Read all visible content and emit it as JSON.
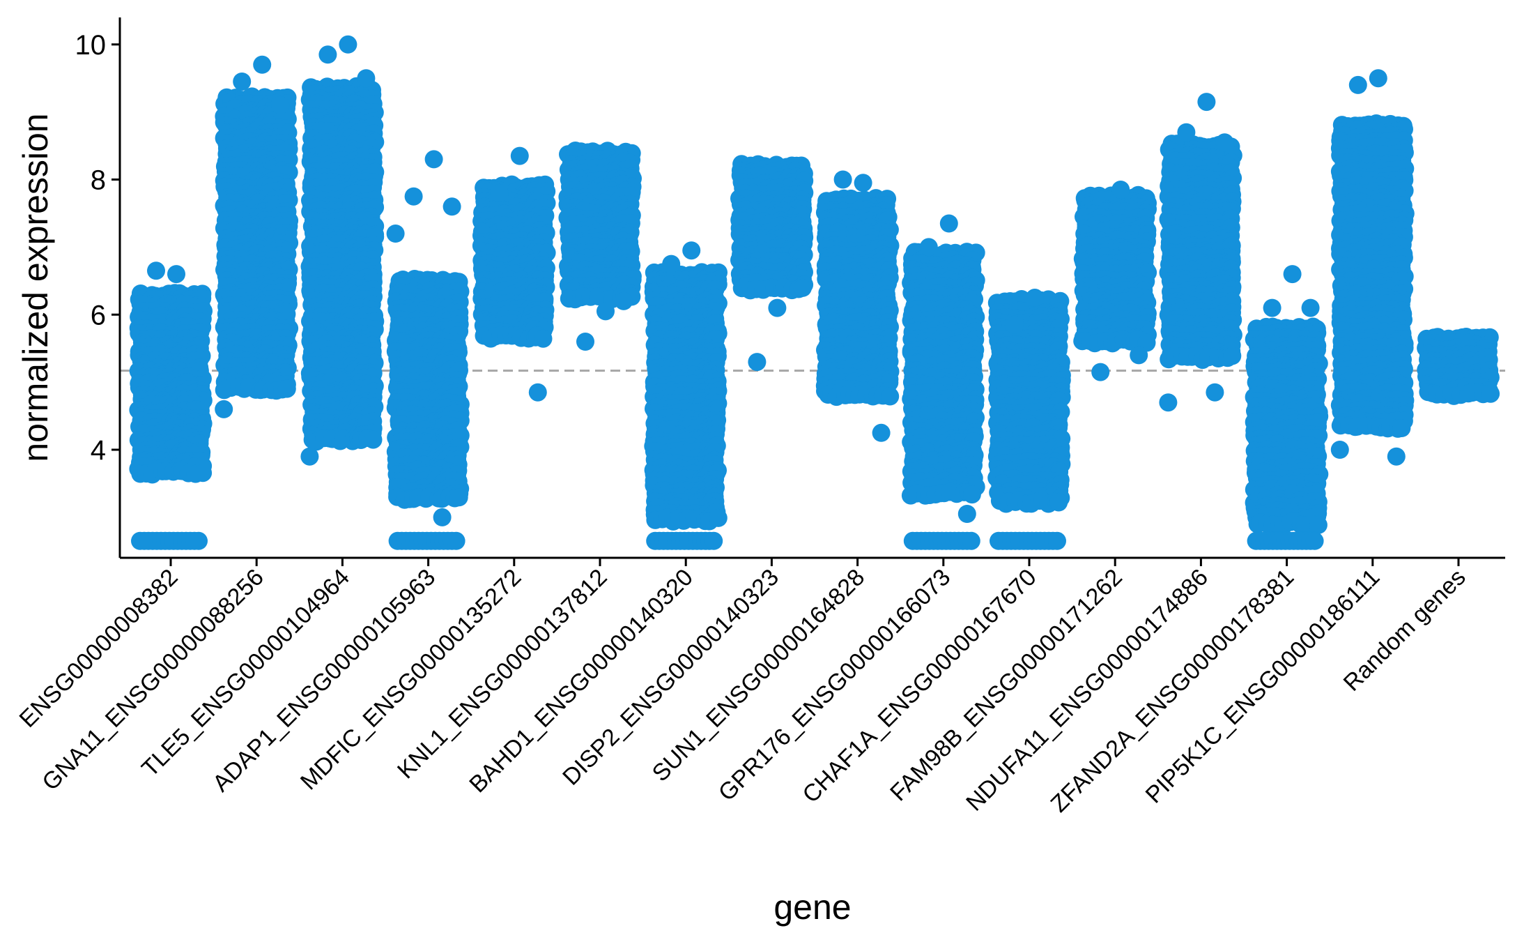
{
  "chart_data": {
    "type": "scatter",
    "subtype": "jitter strip plot",
    "xlabel": "gene",
    "ylabel": "normalized expression",
    "ylim": [
      2.4,
      10.4
    ],
    "yticks": [
      4,
      6,
      8,
      10
    ],
    "point_color": "#1591DB",
    "reference_line": {
      "y": 5.17,
      "style": "dashed",
      "color": "#a6a6a6"
    },
    "categories": [
      "ENSG00000008382",
      "GNA11_ENSG00000088256",
      "TLE5_ENSG00000104964",
      "ADAP1_ENSG00000105963",
      "MDFIC_ENSG00000135272",
      "KNL1_ENSG00000137812",
      "BAHD1_ENSG00000140320",
      "DISP2_ENSG00000140323",
      "SUN1_ENSG00000164828",
      "GPR176_ENSG00000166073",
      "CHAF1A_ENSG00000167670",
      "FAM98B_ENSG00000171262",
      "NDUFA11_ENSG00000174886",
      "ZFAND2A_ENSG00000178381",
      "PIP5K1C_ENSG00000186111",
      "Random genes"
    ],
    "x_tick_labels": [
      "ENSG00000008382",
      "GNA11_ENSG00000088256",
      "TLE5_ENSG00000104964",
      "ADAP1_ENSG00000105963",
      "MDFIC_ENSG00000135272",
      "KNL1_ENSG00000137812",
      "BAHD1_ENSG00000140320",
      "DISP2_ENSG00000140323",
      "SUN1_ENSG00000164828",
      "GPR176_ENSG00000166073",
      "CHAF1A_ENSG00000167670",
      "FAM98B_ENSG00000171262",
      "NDUFA11_ENSG00000174886",
      "ZFAND2A_ENSG00000178381",
      "PIP5K1C_ENSG00000186111",
      "Random genes"
    ],
    "distributions": [
      {
        "category": "ENSG00000008382",
        "min": 3.6,
        "max": 6.3,
        "floor": 2.65,
        "outliers": [
          6.6,
          6.65
        ]
      },
      {
        "category": "GNA11_ENSG00000088256",
        "min": 4.9,
        "max": 9.2,
        "outliers": [
          9.7,
          9.45,
          9.1,
          4.6
        ]
      },
      {
        "category": "TLE5_ENSG00000104964",
        "min": 4.1,
        "max": 9.35,
        "outliers": [
          10.0,
          9.85,
          9.5,
          3.9
        ]
      },
      {
        "category": "ADAP1_ENSG00000105963",
        "min": 3.2,
        "max": 6.5,
        "floor": 2.65,
        "outliers": [
          8.3,
          7.75,
          7.6,
          7.2,
          3.0
        ]
      },
      {
        "category": "MDFIC_ENSG00000135272",
        "min": 5.6,
        "max": 7.9,
        "outliers": [
          8.35,
          7.8,
          4.85
        ]
      },
      {
        "category": "KNL1_ENSG00000137812",
        "min": 6.2,
        "max": 8.4,
        "outliers": [
          6.05,
          5.6,
          6.2
        ]
      },
      {
        "category": "BAHD1_ENSG00000140320",
        "min": 2.9,
        "max": 6.6,
        "floor": 2.65,
        "outliers": [
          6.95,
          6.75
        ]
      },
      {
        "category": "DISP2_ENSG00000140323",
        "min": 6.35,
        "max": 8.2,
        "outliers": [
          6.1,
          5.3
        ]
      },
      {
        "category": "SUN1_ENSG00000164828",
        "min": 4.8,
        "max": 7.7,
        "outliers": [
          7.95,
          8.0,
          4.25
        ]
      },
      {
        "category": "GPR176_ENSG00000166073",
        "min": 3.3,
        "max": 6.9,
        "floor": 2.65,
        "outliers": [
          7.35,
          7.0,
          3.05
        ]
      },
      {
        "category": "CHAF1A_ENSG00000167670",
        "min": 3.2,
        "max": 6.2,
        "floor": 2.65,
        "outliers": [
          6.25,
          5.85
        ]
      },
      {
        "category": "FAM98B_ENSG00000171262",
        "min": 5.6,
        "max": 7.75,
        "outliers": [
          7.85,
          5.15,
          5.4
        ]
      },
      {
        "category": "NDUFA11_ENSG00000174886",
        "min": 5.3,
        "max": 8.5,
        "outliers": [
          9.15,
          8.7,
          8.55,
          4.7,
          4.85
        ]
      },
      {
        "category": "ZFAND2A_ENSG00000178381",
        "min": 2.9,
        "max": 5.8,
        "floor": 2.65,
        "outliers": [
          6.6,
          6.1,
          6.1
        ]
      },
      {
        "category": "PIP5K1C_ENSG00000186111",
        "min": 4.3,
        "max": 8.8,
        "outliers": [
          9.5,
          9.4,
          3.9,
          4.0
        ]
      },
      {
        "category": "Random genes",
        "min": 4.75,
        "max": 5.65,
        "outliers": []
      }
    ]
  }
}
